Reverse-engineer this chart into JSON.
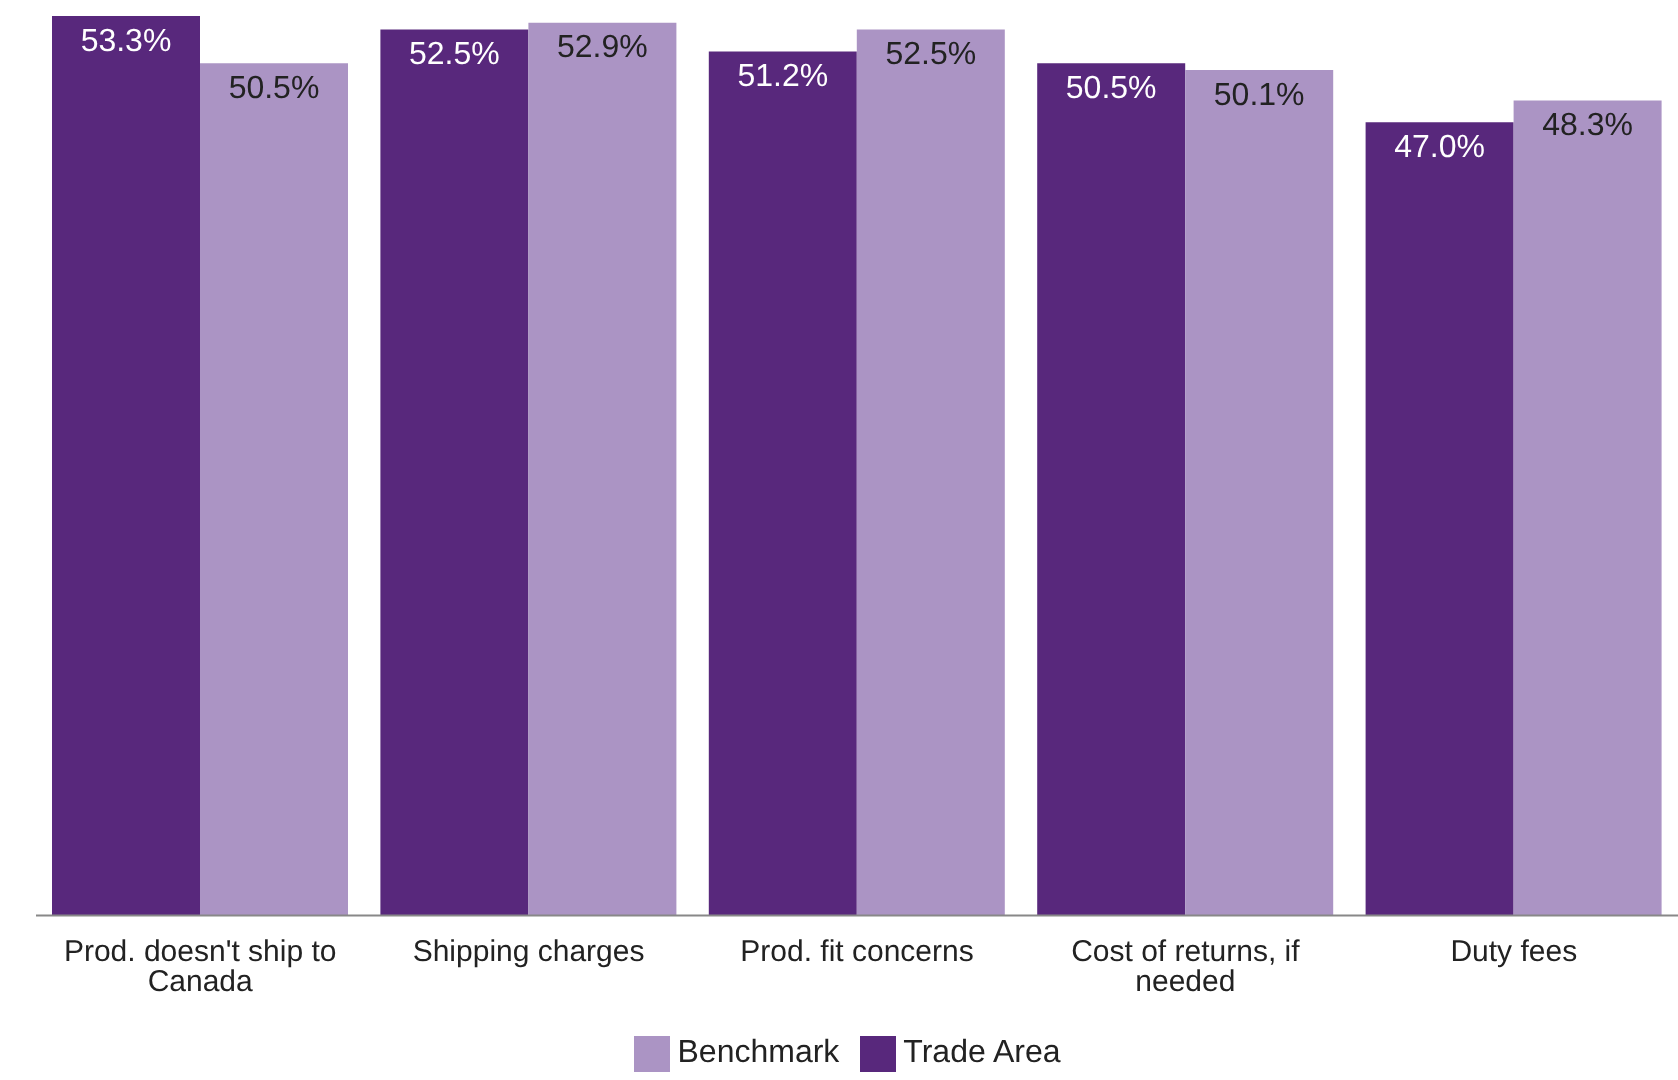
{
  "chart_data": {
    "type": "bar",
    "categories": [
      "Prod. doesn't ship to Canada",
      "Shipping charges",
      "Prod. fit concerns",
      "Cost of returns, if needed",
      "Duty fees"
    ],
    "series": [
      {
        "name": "Trade Area",
        "color": "#58287c",
        "values": [
          53.3,
          52.5,
          51.2,
          50.5,
          47.0
        ],
        "value_labels": [
          "53.3%",
          "52.5%",
          "51.2%",
          "50.5%",
          "47.0%"
        ]
      },
      {
        "name": "Benchmark",
        "color": "#ab94c4",
        "values": [
          50.5,
          52.9,
          52.5,
          50.1,
          48.3
        ],
        "value_labels": [
          "50.5%",
          "52.9%",
          "52.5%",
          "50.1%",
          "48.3%"
        ]
      }
    ],
    "legend": "bottom",
    "grid": false
  }
}
